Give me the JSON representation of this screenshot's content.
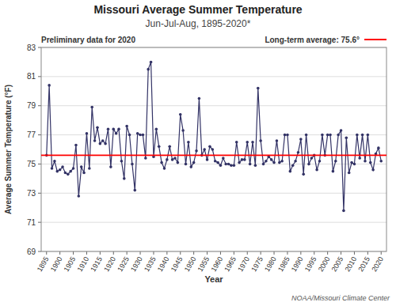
{
  "chart_data": {
    "type": "line",
    "title": "Missouri Average Summer Temperature",
    "subtitle": "Jun-Jul-Aug, 1895-2020*",
    "x_label": "Year",
    "y_label": "Average Summer Temperature (°F)",
    "note": "Preliminary data for 2020",
    "credit": "NOAA/Missouri Climate Center",
    "average": {
      "value": 75.6,
      "label": "Long-term average: 75.6°",
      "color": "red"
    },
    "x": [
      1895,
      1896,
      1897,
      1898,
      1899,
      1900,
      1901,
      1902,
      1903,
      1904,
      1905,
      1906,
      1907,
      1908,
      1909,
      1910,
      1911,
      1912,
      1913,
      1914,
      1915,
      1916,
      1917,
      1918,
      1919,
      1920,
      1921,
      1922,
      1923,
      1924,
      1925,
      1926,
      1927,
      1928,
      1929,
      1930,
      1931,
      1932,
      1933,
      1934,
      1935,
      1936,
      1937,
      1938,
      1939,
      1940,
      1941,
      1942,
      1943,
      1944,
      1945,
      1946,
      1947,
      1948,
      1949,
      1950,
      1951,
      1952,
      1953,
      1954,
      1955,
      1956,
      1957,
      1958,
      1959,
      1960,
      1961,
      1962,
      1963,
      1964,
      1965,
      1966,
      1967,
      1968,
      1969,
      1970,
      1971,
      1972,
      1973,
      1974,
      1975,
      1976,
      1977,
      1978,
      1979,
      1980,
      1981,
      1982,
      1983,
      1984,
      1985,
      1986,
      1987,
      1988,
      1989,
      1990,
      1991,
      1992,
      1993,
      1994,
      1995,
      1996,
      1997,
      1998,
      1999,
      2000,
      2001,
      2002,
      2003,
      2004,
      2005,
      2006,
      2007,
      2008,
      2009,
      2010,
      2011,
      2012,
      2013,
      2014,
      2015,
      2016,
      2017,
      2018,
      2019,
      2020
    ],
    "series": [
      {
        "name": "Average summer temperature",
        "color": "#333366",
        "marker": "circle",
        "values": [
          75.6,
          80.4,
          74.7,
          75.2,
          74.5,
          74.6,
          74.8,
          74.4,
          74.3,
          74.5,
          74.7,
          76.3,
          72.8,
          74.8,
          74.4,
          77.1,
          74.7,
          78.9,
          76.6,
          77.5,
          76.4,
          76.6,
          76.4,
          77.4,
          74.8,
          77.4,
          77.1,
          77.4,
          75.2,
          74.0,
          77.6,
          77.0,
          75.0,
          73.2,
          77.1,
          77.0,
          77.0,
          75.4,
          81.5,
          82.0,
          75.5,
          77.4,
          76.2,
          75.1,
          74.7,
          75.3,
          76.2,
          75.3,
          75.4,
          75.1,
          78.4,
          77.3,
          75.0,
          76.5,
          74.8,
          75.1,
          75.9,
          79.5,
          75.6,
          76.0,
          75.3,
          76.2,
          76.0,
          75.2,
          75.1,
          74.9,
          75.4,
          75.0,
          75.0,
          74.9,
          74.9,
          76.5,
          75.1,
          75.3,
          75.3,
          76.5,
          75.0,
          76.5,
          74.9,
          80.2,
          76.6,
          75.0,
          75.2,
          75.5,
          75.3,
          75.1,
          76.6,
          75.1,
          75.2,
          77.0,
          77.0,
          74.5,
          74.9,
          75.2,
          75.8,
          76.7,
          74.3,
          77.0,
          75.0,
          75.4,
          75.6,
          74.6,
          75.2,
          77.0,
          75.6,
          77.0,
          77.0,
          74.5,
          75.2,
          77.0,
          77.3,
          71.8,
          76.8,
          74.4,
          75.1,
          75.0,
          77.0,
          75.4,
          77.0,
          75.2,
          77.0,
          75.1,
          74.6,
          75.7,
          76.1,
          75.2
        ]
      }
    ],
    "xlim": [
      1893,
      2022
    ],
    "xticks": [
      1895,
      1900,
      1905,
      1910,
      1915,
      1920,
      1925,
      1930,
      1935,
      1940,
      1945,
      1950,
      1955,
      1960,
      1965,
      1970,
      1975,
      1980,
      1985,
      1990,
      1995,
      2000,
      2005,
      2010,
      2015,
      2020
    ],
    "ylim": [
      69,
      83
    ],
    "yticks": [
      69,
      71,
      73,
      75,
      77,
      79,
      81,
      83
    ],
    "grid": true
  }
}
